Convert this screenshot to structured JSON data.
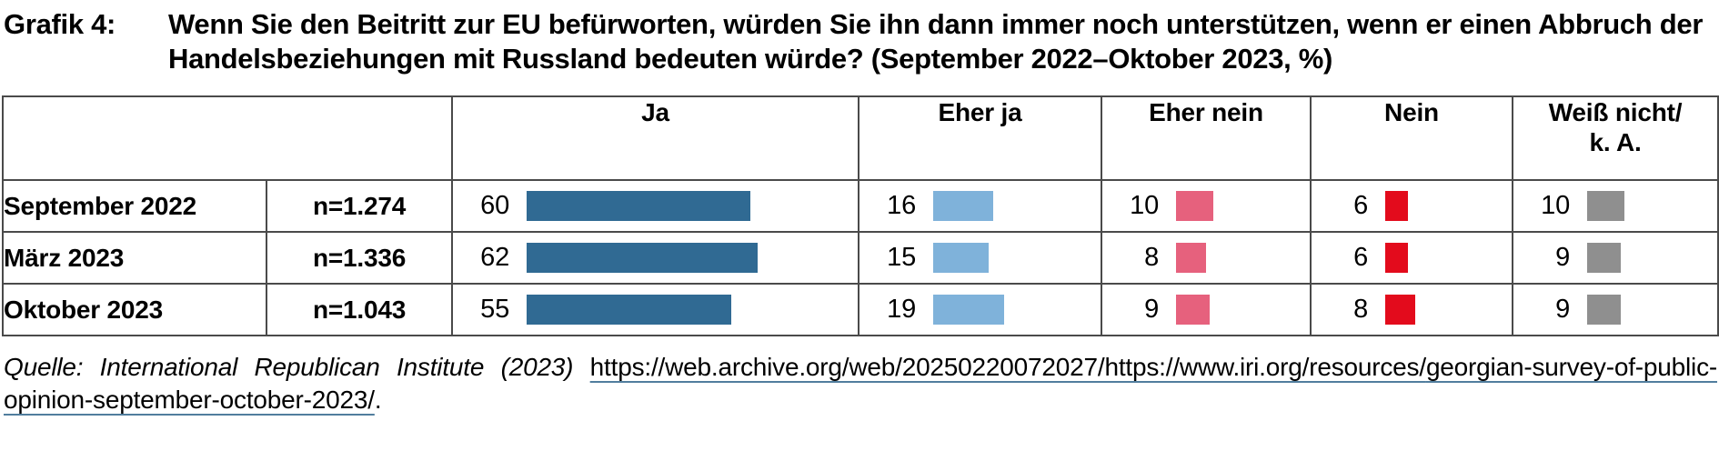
{
  "title": {
    "label": "Grafik 4:",
    "text": "Wenn Sie den Beitritt zur EU befürworten, würden Sie ihn dann immer noch unterstützen, wenn er einen Abbruch der Handelsbeziehungen mit Russland bedeuten würde? (September 2022–Oktober 2023, %)"
  },
  "chart_data": {
    "type": "table",
    "title": "Wenn Sie den Beitritt zur EU befürworten, würden Sie ihn dann immer noch unterstützen, wenn er einen Abbruch der Handelsbeziehungen mit Russland bedeuten würde? (September 2022–Oktober 2023, %)",
    "unit": "%",
    "categories": [
      "Ja",
      "Eher ja",
      "Eher nein",
      "Nein",
      "Weiß nicht/ k. A."
    ],
    "header_lines": [
      [
        "Ja"
      ],
      [
        "Eher ja"
      ],
      [
        "Eher nein"
      ],
      [
        "Nein"
      ],
      [
        "Weiß nicht/",
        "k. A."
      ]
    ],
    "colors": [
      "#306a93",
      "#7fb2da",
      "#e6617d",
      "#e30b1c",
      "#8f8f8f"
    ],
    "rows": [
      {
        "label": "September 2022",
        "n": "n=1.274",
        "values": [
          60,
          16,
          10,
          6,
          10
        ]
      },
      {
        "label": "März 2023",
        "n": "n=1.336",
        "values": [
          62,
          15,
          8,
          6,
          9
        ]
      },
      {
        "label": "Oktober 2023",
        "n": "n=1.043",
        "values": [
          55,
          19,
          9,
          8,
          9
        ]
      }
    ],
    "value_range": [
      0,
      100
    ],
    "legend_position": "none",
    "grid": "table-borders"
  },
  "source": {
    "prefix_italic": "Quelle: International Republican Institute (2023)",
    "url_part1": "https://web.archive.org/web/20250220072027/https://www.iri.org/resources/",
    "url_part2": "georgian-survey-of-public-opinion-september-october-2023/",
    "suffix": "."
  }
}
